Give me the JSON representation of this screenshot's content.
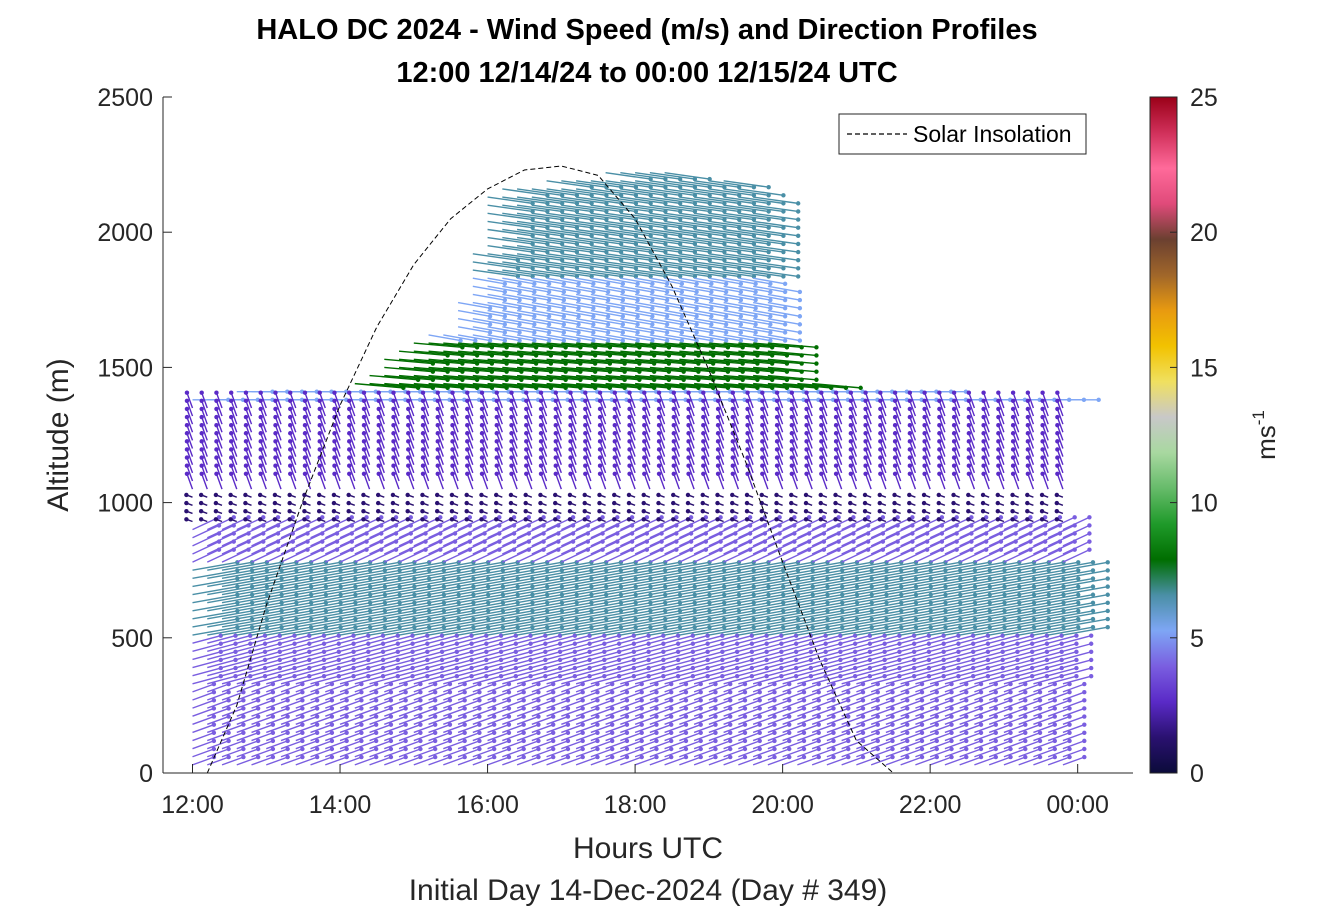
{
  "chart_data": {
    "type": "quiver",
    "title": [
      "HALO DC 2024 - Wind Speed (m/s) and Direction Profiles",
      "12:00 12/14/24 to 00:00 12/15/24  UTC"
    ],
    "xlabel": "Hours UTC",
    "subtitle": "Initial Day 14-Dec-2024 (Day # 349)",
    "ylabel": "Altitude (m)",
    "xlim": [
      11.6,
      24.75
    ],
    "ylim": [
      0,
      2500
    ],
    "x_ticks": [
      "12:00",
      "14:00",
      "16:00",
      "18:00",
      "20:00",
      "22:00",
      "00:00"
    ],
    "x_tick_values": [
      12,
      14,
      16,
      18,
      20,
      22,
      24
    ],
    "y_ticks": [
      "0",
      "500",
      "1000",
      "1500",
      "2000",
      "2500"
    ],
    "y_tick_values": [
      0,
      500,
      1000,
      1500,
      2000,
      2500
    ],
    "legend": {
      "entries": [
        "Solar Insolation"
      ],
      "line_style": "dashed",
      "placement": "top-right"
    },
    "colorbar": {
      "label": "ms",
      "label_exponent": "-1",
      "range": [
        0,
        25
      ],
      "ticks": [
        "0",
        "5",
        "10",
        "15",
        "20",
        "25"
      ],
      "tick_values": [
        0,
        5,
        10,
        15,
        20,
        25
      ],
      "colors": [
        "#0b0b3a",
        "#2a1170",
        "#5a2ac7",
        "#7a5ee0",
        "#7ea6f5",
        "#4a8fa6",
        "#006e00",
        "#1f9a2a",
        "#66bb6a",
        "#a8d8a0",
        "#c8c8c8",
        "#f0e060",
        "#f2c200",
        "#e89a10",
        "#a0662a",
        "#6b4030",
        "#e04a7a",
        "#ff6a9a",
        "#d0305a",
        "#9a0018"
      ]
    },
    "solar_insolation": {
      "x": [
        12.2,
        12.6,
        13.0,
        13.5,
        14.0,
        14.5,
        15.0,
        15.5,
        16.0,
        16.5,
        17.0,
        17.5,
        18.0,
        18.5,
        19.0,
        19.5,
        20.0,
        20.5,
        21.0,
        21.5
      ],
      "y": [
        0,
        250,
        620,
        1010,
        1360,
        1650,
        1880,
        2050,
        2160,
        2230,
        2245,
        2210,
        2050,
        1800,
        1490,
        1150,
        780,
        420,
        120,
        0
      ]
    },
    "wind_profiles": {
      "time_start": 12.0,
      "time_end": 23.9,
      "time_step": 0.2,
      "altitude_step": 30,
      "layers": [
        {
          "alt_min": 0,
          "alt_max": 330,
          "speed": 3.5,
          "dir_deg": 20
        },
        {
          "alt_min": 330,
          "alt_max": 500,
          "speed": 4.5,
          "dir_deg": 15
        },
        {
          "alt_min": 500,
          "alt_max": 780,
          "speed": 7.0,
          "dir_deg": 10
        },
        {
          "alt_min": 780,
          "alt_max": 930,
          "speed": 4.5,
          "dir_deg": 25
        },
        {
          "alt_min": 930,
          "alt_max": 1050,
          "speed": 1.0,
          "dir_deg": 160
        },
        {
          "alt_min": 1050,
          "alt_max": 1380,
          "speed": 2.5,
          "dir_deg": 110
        },
        {
          "alt_min": 1380,
          "alt_max": 1420,
          "speed": 5.5,
          "dir_deg": 0
        },
        {
          "alt_min": 1420,
          "alt_max": 1600,
          "speed": 7.5,
          "dir_deg": -5
        },
        {
          "alt_min": 1600,
          "alt_max": 1850,
          "speed": 5.0,
          "dir_deg": -10
        },
        {
          "alt_min": 1850,
          "alt_max": 2300,
          "speed": 7.0,
          "dir_deg": -8
        }
      ],
      "top_height": [
        [
          12.0,
          1400
        ],
        [
          13.0,
          1420
        ],
        [
          14.0,
          1410
        ],
        [
          15.0,
          1620
        ],
        [
          15.5,
          1650
        ],
        [
          16.0,
          2150
        ],
        [
          17.0,
          2210
        ],
        [
          18.0,
          2230
        ],
        [
          19.0,
          2210
        ],
        [
          19.6,
          2150
        ],
        [
          20.0,
          1450
        ],
        [
          21.5,
          1420
        ],
        [
          22.5,
          1400
        ],
        [
          23.5,
          1400
        ],
        [
          23.9,
          1380
        ]
      ]
    }
  }
}
